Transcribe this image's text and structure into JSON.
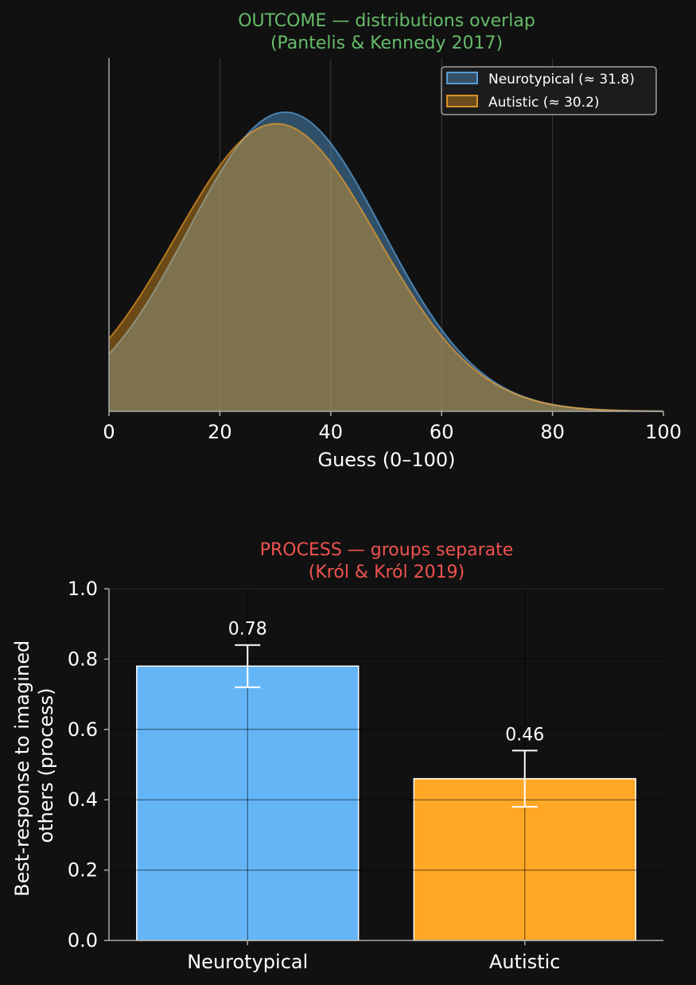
{
  "colors": {
    "background": "#111111",
    "text": "#ffffff",
    "axis": "#aaaaaa",
    "grid": "#3a3a3a",
    "neurotypical": "#64b5f6",
    "autistic": "#ffa726",
    "outcome_title": "#66bb6a",
    "process_title": "#ef5350"
  },
  "chart_data": [
    {
      "type": "area",
      "title": "OUTCOME — distributions overlap",
      "subtitle": "(Pantelis & Kennedy 2017)",
      "xlabel": "Guess (0–100)",
      "ylabel": "",
      "xlim": [
        0,
        100
      ],
      "xticks": [
        "0",
        "20",
        "40",
        "60",
        "80",
        "100"
      ],
      "grid": "vertical",
      "legend_position": "top-right",
      "series": [
        {
          "name": "Neurotypical (≈ 31.8)",
          "mean": 31.8,
          "sd": 17.5,
          "color": "#64b5f6"
        },
        {
          "name": "Autistic (≈ 30.2)",
          "mean": 30.2,
          "sd": 18.2,
          "color": "#ffa726"
        }
      ]
    },
    {
      "type": "bar",
      "title": "PROCESS — groups separate",
      "subtitle": "(Król & Król 2019)",
      "xlabel": "",
      "ylabel": "Best-response to imagined others (process)",
      "ylabel_lines": [
        "Best-response to imagined",
        "others (process)"
      ],
      "ylim": [
        0,
        1.0
      ],
      "yticks": [
        "0.0",
        "0.2",
        "0.4",
        "0.6",
        "0.8",
        "1.0"
      ],
      "grid": "both",
      "categories": [
        "Neurotypical",
        "Autistic"
      ],
      "values": [
        0.78,
        0.46
      ],
      "value_labels": [
        "0.78",
        "0.46"
      ],
      "error_low": [
        0.72,
        0.38
      ],
      "error_high": [
        0.84,
        0.54
      ],
      "bar_colors": [
        "#64b5f6",
        "#ffa726"
      ]
    }
  ]
}
